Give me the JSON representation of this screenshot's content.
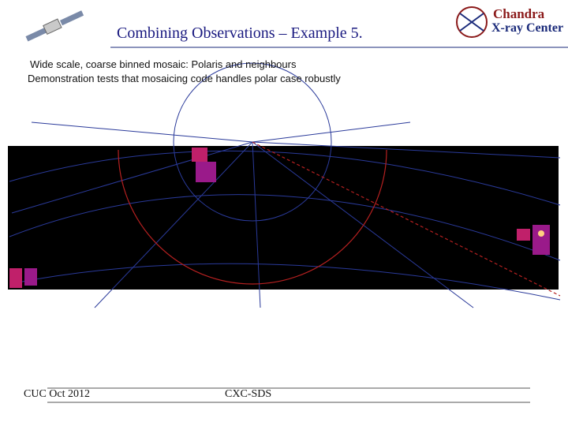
{
  "header": {
    "title": "Combining Observations – Example 5.",
    "logo": [
      "Chandra",
      "X-ray Center"
    ]
  },
  "subtitle": [
    "Wide scale, coarse binned mosaic: Polaris and neighbours",
    "Demonstration tests that mosaicing code handles polar case robustly"
  ],
  "footer": {
    "left": "CUC Oct 2012",
    "center": "CXC-SDS"
  }
}
